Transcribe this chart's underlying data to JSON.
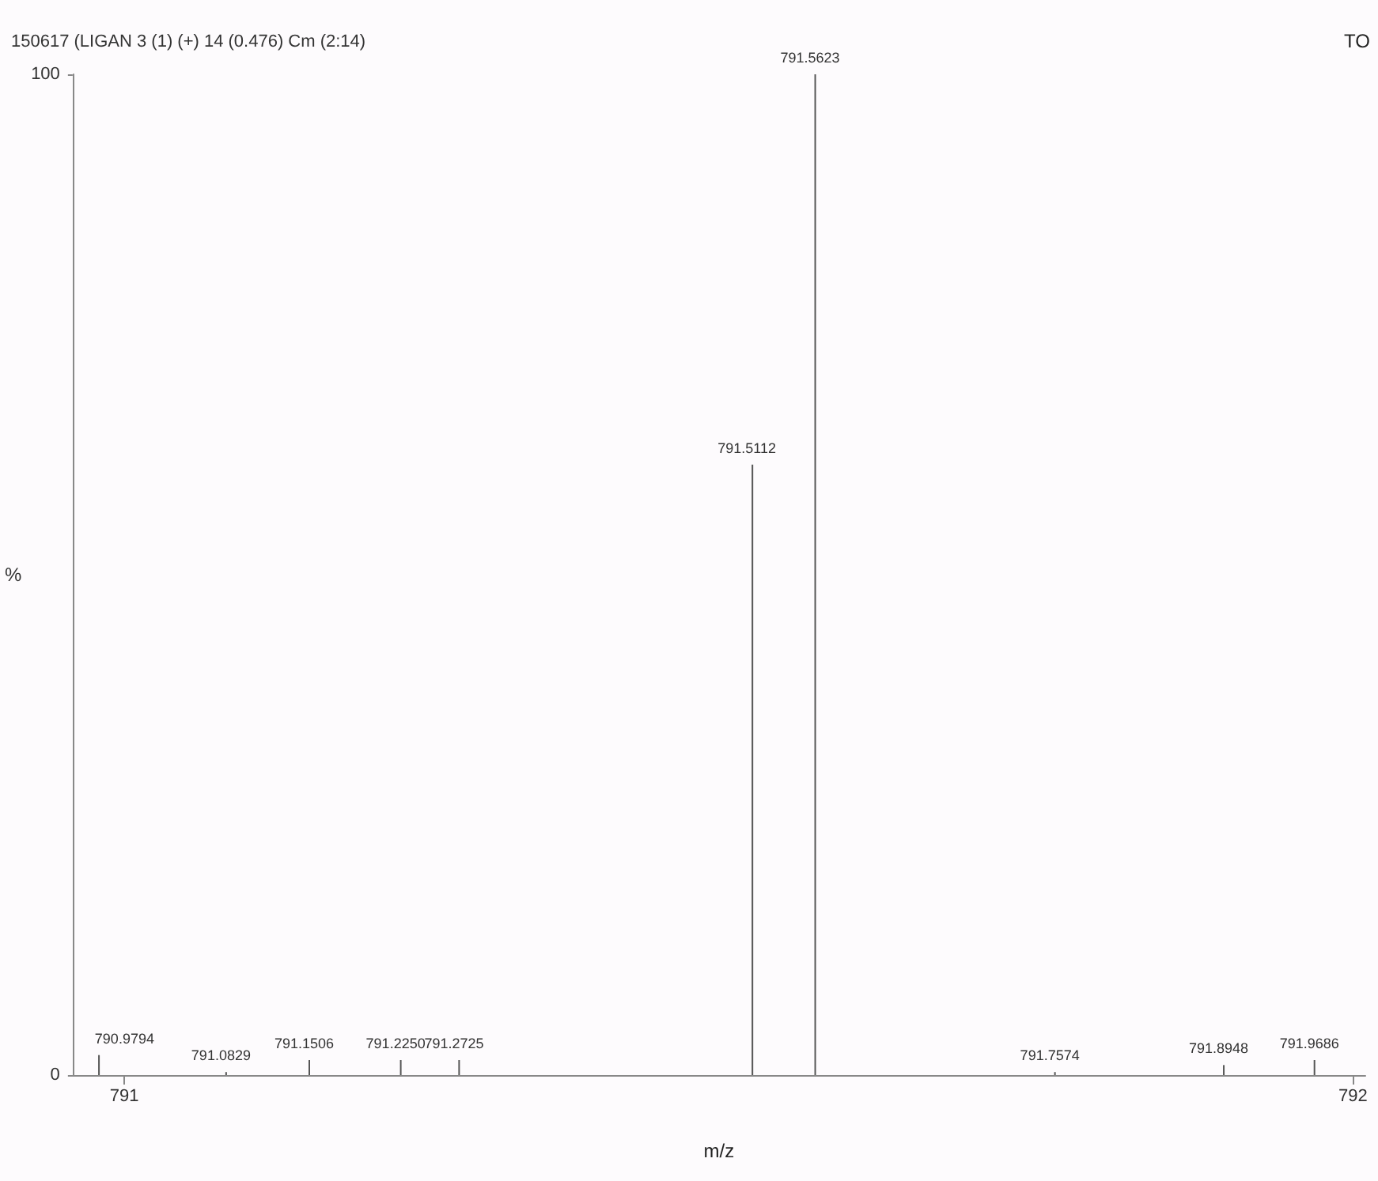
{
  "chart_data": {
    "type": "bar",
    "title": "150617 (LIGAN 3 (1) (+) 14 (0.476) Cm (2:14)",
    "xlabel": "m/z",
    "ylabel": "%",
    "annotations": [
      "TO",
      {
        "text": "790.9794",
        "x": 790.9794,
        "y": 2
      },
      {
        "text": "791.0829",
        "x": 791.0829,
        "y": 0.3
      },
      {
        "text": "791.1506",
        "x": 791.1506,
        "y": 1.5
      },
      {
        "text": "791.2250",
        "x": 791.225,
        "y": 1.5
      },
      {
        "text": "791.2725",
        "x": 791.2725,
        "y": 1.5
      },
      {
        "text": "791.5112",
        "x": 791.5112,
        "y": 61
      },
      {
        "text": "791.5623",
        "x": 791.5623,
        "y": 100
      },
      {
        "text": "791.7574",
        "x": 791.7574,
        "y": 0.3
      },
      {
        "text": "791.8948",
        "x": 791.8948,
        "y": 1
      },
      {
        "text": "791.9686",
        "x": 791.9686,
        "y": 1.5
      }
    ],
    "x": [
      790.9794,
      791.0829,
      791.1506,
      791.225,
      791.2725,
      791.5112,
      791.5623,
      791.7574,
      791.8948,
      791.9686
    ],
    "series": [
      {
        "color": "#555555",
        "values": [
          2,
          0.3,
          1.5,
          1.5,
          1.5,
          61,
          100,
          0.3,
          1,
          1.5
        ]
      }
    ],
    "xlim": [
      790.958,
      792.01
    ],
    "xticks": [
      791,
      792
    ],
    "ylim": [
      0,
      100
    ],
    "yticks": [
      0,
      100
    ],
    "grid": false
  }
}
